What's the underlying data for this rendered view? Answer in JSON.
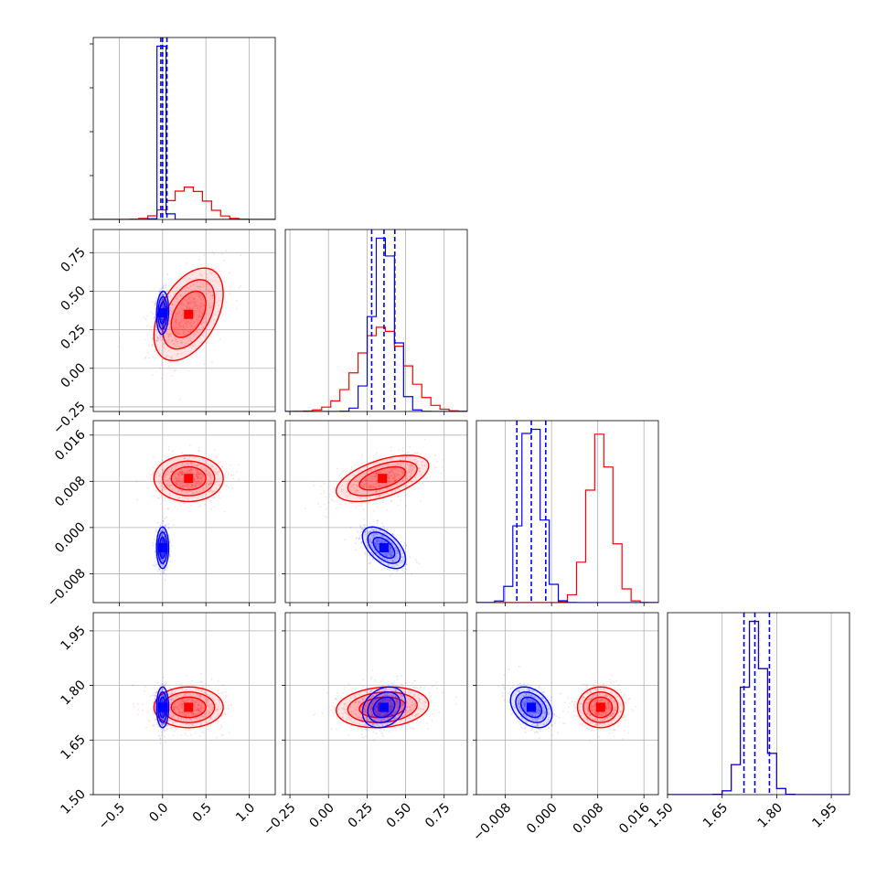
{
  "chart_data": {
    "type": "corner",
    "colors": {
      "red": "#ff0000",
      "blue": "#0000ff"
    },
    "parameters": [
      {
        "range": [
          -0.8,
          1.3
        ],
        "ticks": [
          -0.5,
          0.0,
          0.5,
          1.0
        ],
        "tick_labels": [
          "−0.5",
          "0.0",
          "0.5",
          "1.0"
        ]
      },
      {
        "range": [
          -0.28,
          0.9
        ],
        "ticks": [
          -0.25,
          0.0,
          0.25,
          0.5,
          0.75
        ],
        "tick_labels": [
          "−0.25",
          "0.00",
          "0.25",
          "0.50",
          "0.75"
        ]
      },
      {
        "range": [
          -0.013,
          0.0185
        ],
        "ticks": [
          -0.008,
          0.0,
          0.008,
          0.016
        ],
        "tick_labels": [
          "−0.008",
          "0.000",
          "0.008",
          "0.016"
        ]
      },
      {
        "range": [
          1.5,
          2.0
        ],
        "ticks": [
          1.5,
          1.65,
          1.8,
          1.95
        ],
        "tick_labels": [
          "1.50",
          "1.65",
          "1.80",
          "1.95"
        ]
      }
    ],
    "series": [
      {
        "color": "red",
        "mean": [
          0.3,
          0.35,
          0.0085,
          1.74
        ],
        "sd": [
          0.2,
          0.15,
          0.002,
          0.028
        ],
        "corr": [
          [
            0,
            1,
            0.45
          ],
          [
            1,
            2,
            0.55
          ],
          [
            2,
            3,
            0.0
          ],
          [
            0,
            3,
            0.0
          ],
          [
            1,
            3,
            0.15
          ]
        ],
        "quantiles_shown": false
      },
      {
        "color": "blue",
        "mean": [
          0.0,
          0.36,
          -0.0035,
          1.74
        ],
        "sd": [
          0.035,
          0.07,
          0.0018,
          0.028
        ],
        "corr": [
          [
            0,
            1,
            0.1
          ],
          [
            1,
            2,
            -0.55
          ],
          [
            2,
            3,
            -0.35
          ],
          [
            0,
            3,
            0.0
          ],
          [
            1,
            3,
            0.25
          ]
        ],
        "quantiles_shown": true,
        "quantiles": [
          [
            -0.02,
            0.0,
            0.05
          ],
          [
            0.28,
            0.36,
            0.43
          ],
          [
            -0.006,
            -0.0035,
            -0.001
          ],
          [
            1.71,
            1.74,
            1.78
          ]
        ]
      }
    ],
    "grid": true
  }
}
